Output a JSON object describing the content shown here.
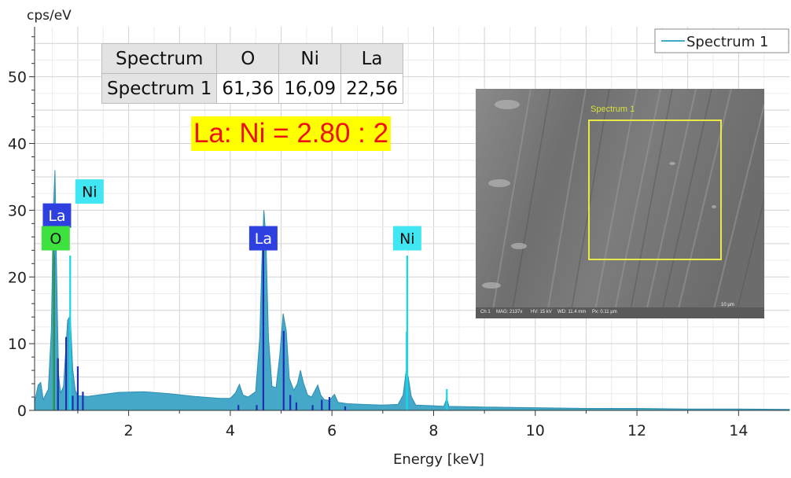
{
  "chart_data": {
    "type": "area",
    "ylabel": "cps/eV",
    "xlabel": "Energy [keV]",
    "xlim": [
      0.15,
      15.0
    ],
    "ylim": [
      0,
      57.5
    ],
    "x_ticks": [
      2,
      4,
      6,
      8,
      10,
      12,
      14
    ],
    "y_ticks": [
      0,
      10,
      20,
      30,
      40,
      50
    ],
    "grid": true,
    "legend_position": "top-right",
    "series": [
      {
        "name": "Spectrum 1",
        "color": "#46a8c9",
        "points": [
          [
            0.15,
            1.2
          ],
          [
            0.22,
            3.8
          ],
          [
            0.27,
            4.2
          ],
          [
            0.32,
            1.6
          ],
          [
            0.42,
            3.2
          ],
          [
            0.48,
            12
          ],
          [
            0.52,
            30
          ],
          [
            0.55,
            36
          ],
          [
            0.58,
            22
          ],
          [
            0.62,
            5.5
          ],
          [
            0.66,
            2.6
          ],
          [
            0.72,
            3.6
          ],
          [
            0.76,
            8.5
          ],
          [
            0.8,
            13.5
          ],
          [
            0.85,
            14.2
          ],
          [
            0.9,
            6.2
          ],
          [
            0.95,
            3.0
          ],
          [
            1.0,
            2.2
          ],
          [
            1.2,
            2.1
          ],
          [
            1.5,
            2.4
          ],
          [
            1.8,
            2.7
          ],
          [
            2.3,
            2.8
          ],
          [
            2.8,
            2.5
          ],
          [
            3.3,
            2.1
          ],
          [
            3.8,
            1.8
          ],
          [
            4.0,
            1.8
          ],
          [
            4.1,
            2.6
          ],
          [
            4.18,
            3.9
          ],
          [
            4.25,
            2.3
          ],
          [
            4.35,
            2.0
          ],
          [
            4.5,
            2.8
          ],
          [
            4.58,
            11
          ],
          [
            4.62,
            22
          ],
          [
            4.66,
            30
          ],
          [
            4.7,
            26
          ],
          [
            4.75,
            11
          ],
          [
            4.82,
            3.6
          ],
          [
            4.9,
            3.4
          ],
          [
            4.97,
            8
          ],
          [
            5.04,
            14.5
          ],
          [
            5.1,
            12
          ],
          [
            5.16,
            4.8
          ],
          [
            5.25,
            3.0
          ],
          [
            5.32,
            4.0
          ],
          [
            5.38,
            6.0
          ],
          [
            5.44,
            4.1
          ],
          [
            5.52,
            2.3
          ],
          [
            5.6,
            2.0
          ],
          [
            5.72,
            3.8
          ],
          [
            5.78,
            2.3
          ],
          [
            5.85,
            1.6
          ],
          [
            5.95,
            1.5
          ],
          [
            6.05,
            2.4
          ],
          [
            6.12,
            1.2
          ],
          [
            6.3,
            1.0
          ],
          [
            6.6,
            0.9
          ],
          [
            7.0,
            0.8
          ],
          [
            7.3,
            0.9
          ],
          [
            7.4,
            2.3
          ],
          [
            7.46,
            6.0
          ],
          [
            7.5,
            5.0
          ],
          [
            7.56,
            2.1
          ],
          [
            7.65,
            0.8
          ],
          [
            8.0,
            0.7
          ],
          [
            8.2,
            0.6
          ],
          [
            8.26,
            1.8
          ],
          [
            8.3,
            0.6
          ],
          [
            9.0,
            0.5
          ],
          [
            10.0,
            0.4
          ],
          [
            11.0,
            0.3
          ],
          [
            12.0,
            0.3
          ],
          [
            13.0,
            0.2
          ],
          [
            14.0,
            0.2
          ],
          [
            15.0,
            0.15
          ]
        ]
      }
    ],
    "element_lines": [
      {
        "color": "#1e2fb4",
        "lines": [
          [
            0.53,
            23.2
          ],
          [
            0.61,
            7.8
          ],
          [
            0.77,
            11
          ],
          [
            0.9,
            2.2
          ],
          [
            1.0,
            6.6
          ],
          [
            1.1,
            2.8
          ],
          [
            4.16,
            0.8
          ],
          [
            4.52,
            0.8
          ],
          [
            4.65,
            25.6
          ],
          [
            5.05,
            11.9
          ],
          [
            5.18,
            2.3
          ],
          [
            5.3,
            1.2
          ],
          [
            5.62,
            0.8
          ],
          [
            5.8,
            1.6
          ],
          [
            5.95,
            2.0
          ],
          [
            6.26,
            0.6
          ]
        ]
      },
      {
        "color": "#19d4e4",
        "lines": [
          [
            0.85,
            23.2
          ],
          [
            7.48,
            23.2
          ],
          [
            7.47,
            11.8
          ],
          [
            8.26,
            3.2
          ]
        ]
      },
      {
        "color": "#2f9e44",
        "lines": [
          [
            0.525,
            26.5
          ]
        ]
      }
    ],
    "markers": [
      {
        "label": "Ni",
        "x": 0.85,
        "bg": "#40e6f2",
        "fg": "#111111",
        "level": 32.8
      },
      {
        "label": "La",
        "x": 0.53,
        "bg": "#2f40e0",
        "fg": "#ffffff",
        "level": 29.2
      },
      {
        "label": "O",
        "x": 0.525,
        "bg": "#3ee23e",
        "fg": "#111111",
        "level": 25.8
      },
      {
        "label": "La",
        "x": 4.65,
        "bg": "#2f40e0",
        "fg": "#ffffff",
        "level": 25.8
      },
      {
        "label": "Ni",
        "x": 7.48,
        "bg": "#40e6f2",
        "fg": "#111111",
        "level": 25.8
      }
    ]
  },
  "results_table": {
    "header": [
      "Spectrum",
      "O",
      "Ni",
      "La"
    ],
    "row": [
      "Spectrum 1",
      "61,36",
      "16,09",
      "22,56"
    ]
  },
  "ratio_label": "La: Ni = 2.80 : 2",
  "sem_image": {
    "roi_label": "Spectrum 1",
    "info_items": [
      "Ch 1",
      "MAG: 2137x",
      "HV: 15 kV",
      "WD: 11.4 mm",
      "Px: 0.11 µm"
    ],
    "scale_label": "10 µm"
  }
}
